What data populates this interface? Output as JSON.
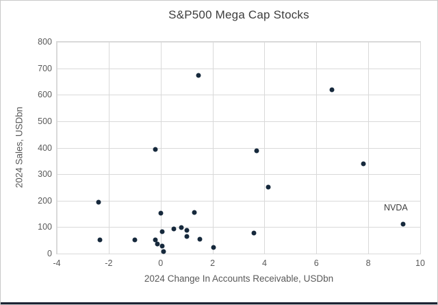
{
  "chart_data": {
    "type": "scatter",
    "title": "S&P500 Mega Cap Stocks",
    "xlabel": "2024 Change In Accounts Receivable, USDbn",
    "ylabel": "2024 Sales, USDbn",
    "xlim": [
      -4,
      10
    ],
    "ylim": [
      0,
      800
    ],
    "x_ticks": [
      -4,
      -2,
      0,
      2,
      4,
      6,
      8,
      10
    ],
    "y_ticks": [
      0,
      100,
      200,
      300,
      400,
      500,
      600,
      700,
      800
    ],
    "grid": true,
    "legend_position": "none",
    "marker_shape": "circle",
    "points": [
      {
        "x": -2.4,
        "y": 195
      },
      {
        "x": -2.35,
        "y": 52
      },
      {
        "x": -1.0,
        "y": 53
      },
      {
        "x": -0.2,
        "y": 393
      },
      {
        "x": -0.2,
        "y": 53
      },
      {
        "x": -0.13,
        "y": 37
      },
      {
        "x": 0.0,
        "y": 153
      },
      {
        "x": 0.05,
        "y": 82
      },
      {
        "x": 0.07,
        "y": 29
      },
      {
        "x": 0.1,
        "y": 8
      },
      {
        "x": 0.5,
        "y": 93
      },
      {
        "x": 0.8,
        "y": 99
      },
      {
        "x": 1.0,
        "y": 87
      },
      {
        "x": 1.0,
        "y": 66
      },
      {
        "x": 1.3,
        "y": 156
      },
      {
        "x": 1.45,
        "y": 673
      },
      {
        "x": 1.5,
        "y": 54
      },
      {
        "x": 2.05,
        "y": 23
      },
      {
        "x": 3.6,
        "y": 78
      },
      {
        "x": 3.7,
        "y": 389
      },
      {
        "x": 4.15,
        "y": 252
      },
      {
        "x": 6.6,
        "y": 620
      },
      {
        "x": 7.8,
        "y": 340
      },
      {
        "x": 9.35,
        "y": 111,
        "label": "NVDA"
      }
    ]
  },
  "colors": {
    "marker": "#16293c",
    "gridline": "#d9d9d9",
    "axis_text": "#595959",
    "title_text": "#3d3d3d",
    "background": "#ffffff",
    "frame_border": "#c8c8c8",
    "bottom_bar": "#1c2333"
  }
}
